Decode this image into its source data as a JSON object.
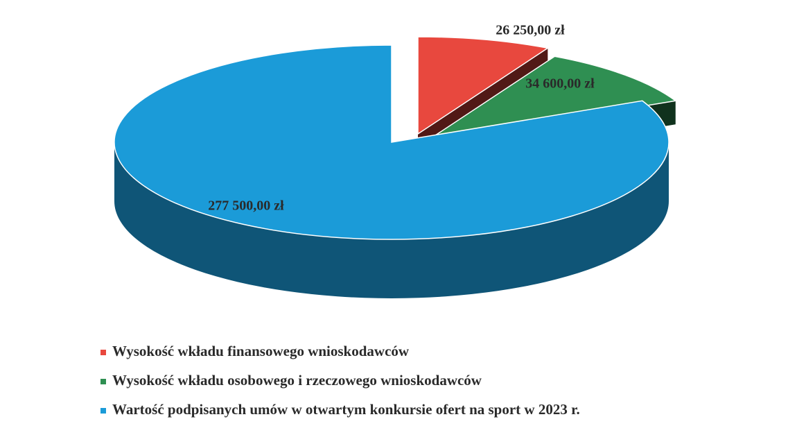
{
  "chart_data": {
    "type": "pie",
    "categories": [
      "Wysokość wkładu finansowego wnioskodawców",
      "Wysokość wkładu osobowego i rzeczowego wnioskodawców",
      "Wartość podpisanych umów w otwartym konkursie ofert na sport w 2023 r."
    ],
    "values": [
      26250,
      34600,
      277500
    ],
    "value_labels": [
      "26 250,00 zł",
      "34 600,00 zł",
      "277 500,00 zł"
    ],
    "colors": [
      "#e8483e",
      "#2f8f52",
      "#1b9bd8"
    ],
    "legend": "bottom"
  }
}
